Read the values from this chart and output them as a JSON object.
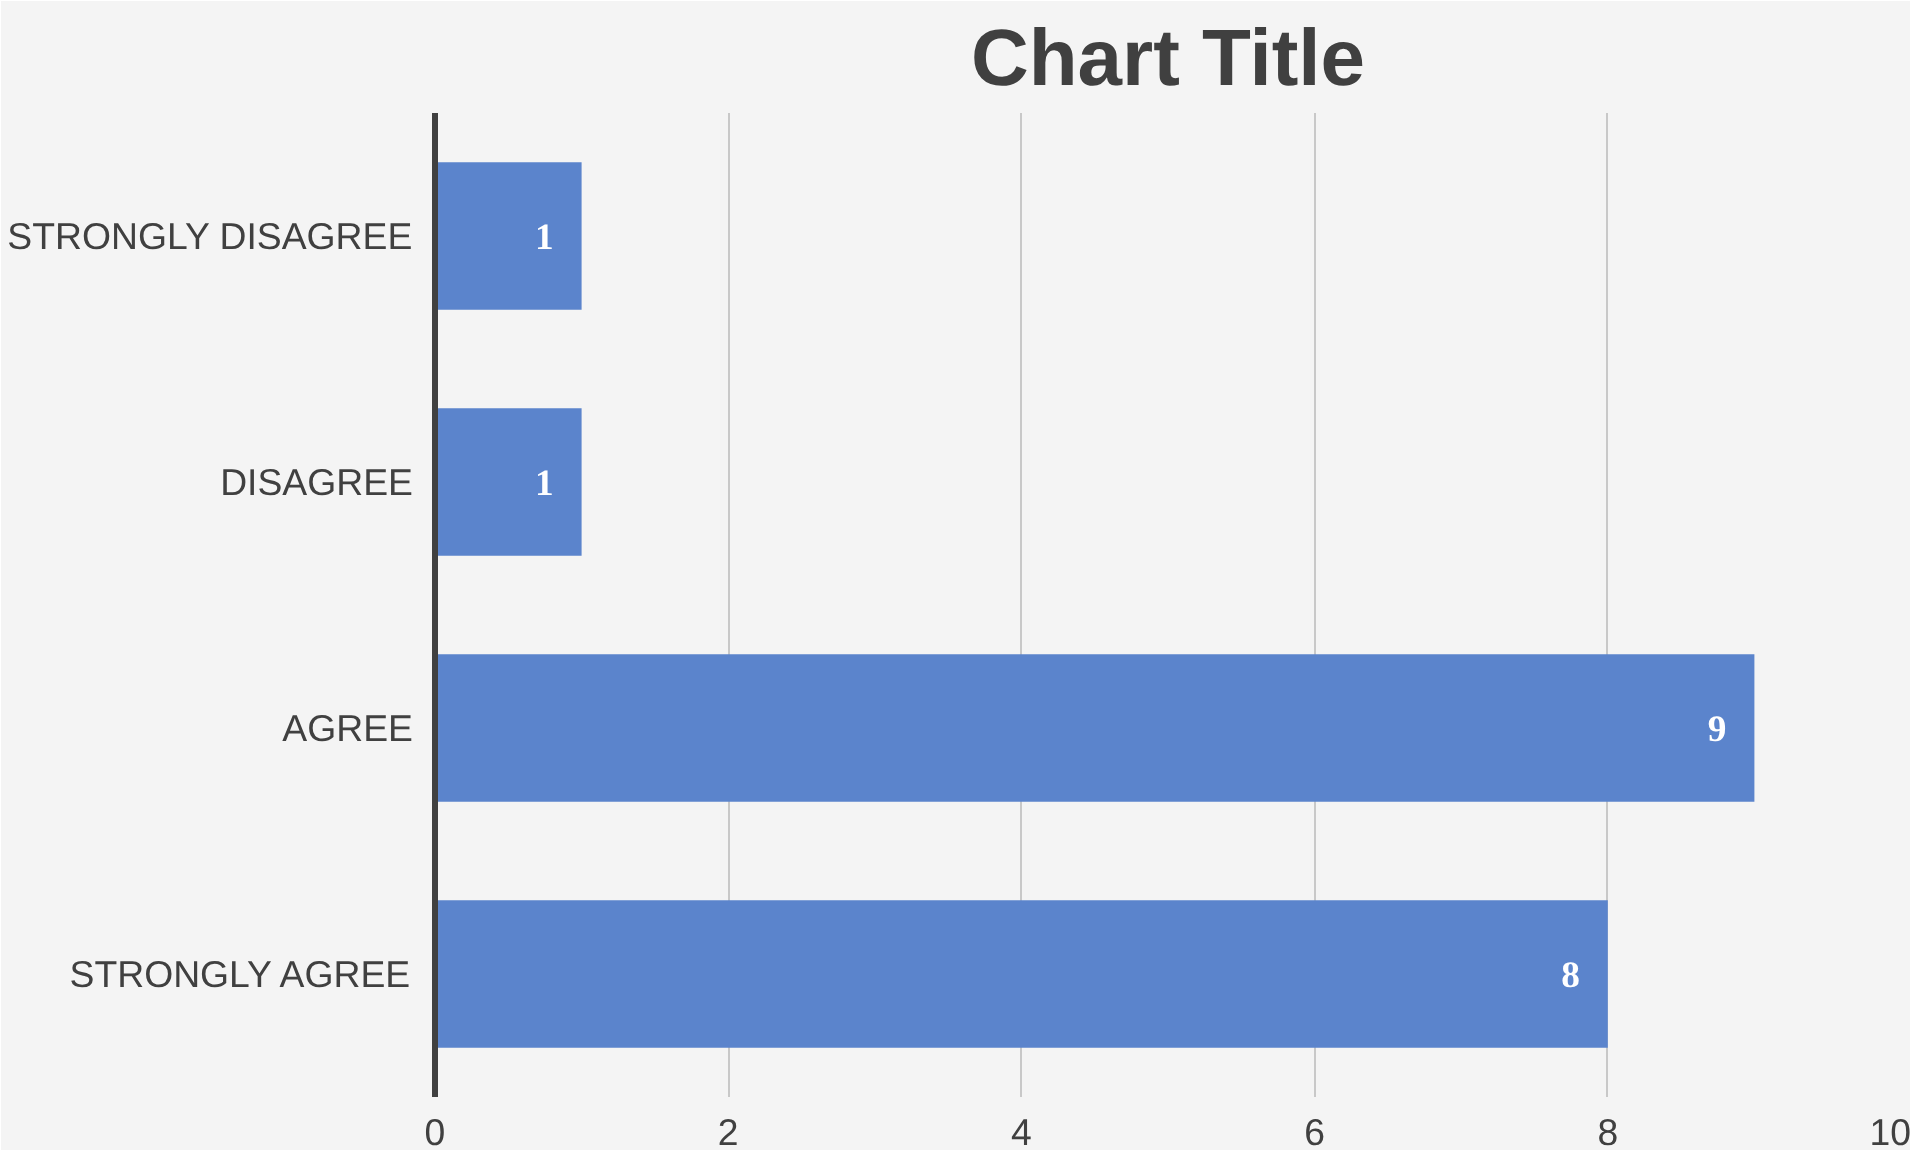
{
  "chart_data": {
    "type": "bar",
    "orientation": "horizontal",
    "title": "Chart Title",
    "categories": [
      "STRONGLY DISAGREE",
      "DISAGREE",
      "AGREE",
      "STRONGLY AGREE"
    ],
    "values": [
      1,
      1,
      9,
      8
    ],
    "color": "#5b84cc",
    "xlim": [
      0,
      10
    ],
    "xticks": [
      0,
      2,
      4,
      6,
      8,
      10
    ],
    "grid": "x",
    "data_labels": true
  }
}
